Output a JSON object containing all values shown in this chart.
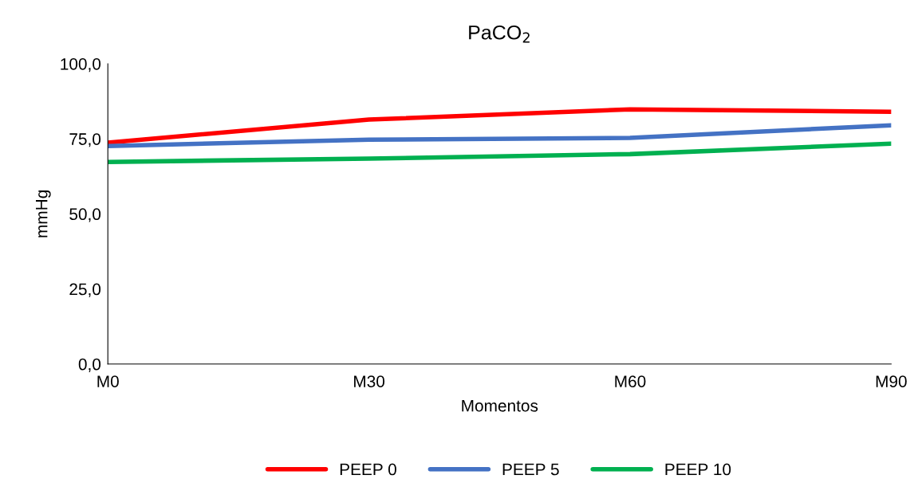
{
  "chart_data": {
    "type": "line",
    "title": "PaCO$_{2}$",
    "xlabel": "Momentos",
    "ylabel": "mmHg",
    "categories": [
      "M0",
      "M30",
      "M60",
      "M90"
    ],
    "series": [
      {
        "name": "PEEP 0",
        "color": "#ff0000",
        "values": [
          73.7,
          81.4,
          84.8,
          84.0
        ]
      },
      {
        "name": "PEEP 5",
        "color": "#4472c4",
        "values": [
          72.6,
          74.7,
          75.3,
          79.5
        ]
      },
      {
        "name": "PEEP 10",
        "color": "#00b050",
        "values": [
          67.3,
          68.4,
          69.9,
          73.4
        ]
      }
    ],
    "ylim": [
      0,
      100
    ],
    "yticks": [
      {
        "value": 0,
        "label": "0,0"
      },
      {
        "value": 25,
        "label": "25,0"
      },
      {
        "value": 50,
        "label": "50,0"
      },
      {
        "value": 75,
        "label": "75,0"
      },
      {
        "value": 100,
        "label": "100,0"
      }
    ],
    "grid": false,
    "legend": "bottom",
    "marker": "none",
    "line_style": "solid"
  }
}
